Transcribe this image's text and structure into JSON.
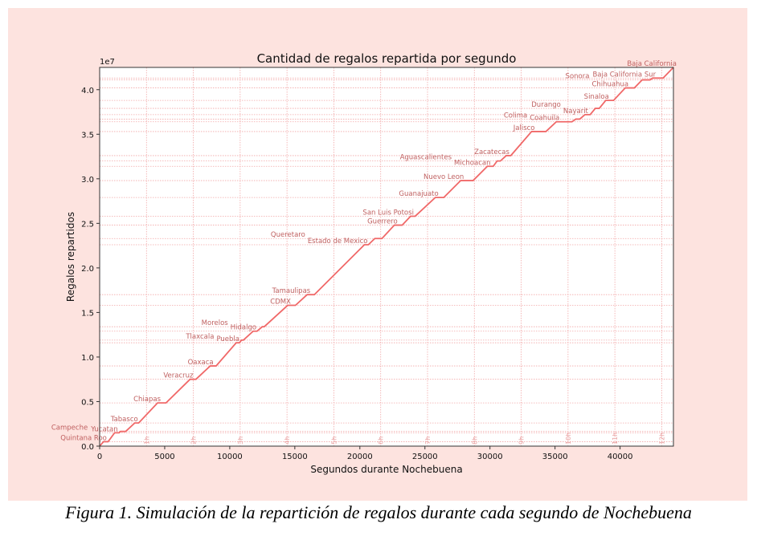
{
  "caption": "Figura 1. Simulación de la repartición de regalos durante cada segundo de Nochebuena",
  "chart_data": {
    "type": "line",
    "title": "Cantidad de regalos repartida por segundo",
    "xlabel": "Segundos durante Nochebuena",
    "ylabel": "Regalos repartidos",
    "y_offset_label": "1e7",
    "xlim": [
      0,
      44100
    ],
    "ylim": [
      0,
      42500000
    ],
    "x_ticks": [
      0,
      5000,
      10000,
      15000,
      20000,
      25000,
      30000,
      35000,
      40000
    ],
    "y_ticks": [
      0,
      5000000,
      10000000,
      15000000,
      20000000,
      25000000,
      30000000,
      35000000,
      40000000
    ],
    "y_tick_labels": [
      "0.0",
      "0.5",
      "1.0",
      "1.5",
      "2.0",
      "2.5",
      "3.0",
      "3.5",
      "4.0"
    ],
    "hour_markers": [
      {
        "label": "1h",
        "x": 3600
      },
      {
        "label": "2h",
        "x": 7200
      },
      {
        "label": "3h",
        "x": 10800
      },
      {
        "label": "4h",
        "x": 14400
      },
      {
        "label": "5h",
        "x": 18000
      },
      {
        "label": "6h",
        "x": 21600
      },
      {
        "label": "7h",
        "x": 25200
      },
      {
        "label": "8h",
        "x": 28800
      },
      {
        "label": "9h",
        "x": 32400
      },
      {
        "label": "10h",
        "x": 36000
      },
      {
        "label": "11h",
        "x": 39600
      },
      {
        "label": "12h",
        "x": 43200
      }
    ],
    "line_color": "#f06868",
    "label_color": "#c06060",
    "grid_color": "#f2a8a8",
    "states": [
      {
        "name": "Quintana Roo",
        "y": 500000,
        "x_start": 300,
        "x_end": 650
      },
      {
        "name": "Yucatan",
        "y": 1500000,
        "x_start": 1150,
        "x_end": 1500
      },
      {
        "name": "Campeche",
        "y": 1650000,
        "x_start": 1600,
        "x_end": 2000
      },
      {
        "name": "Tabasco",
        "y": 2600000,
        "x_start": 2700,
        "x_end": 3000
      },
      {
        "name": "Chiapas",
        "y": 4850000,
        "x_start": 4450,
        "x_end": 5100
      },
      {
        "name": "Veracruz",
        "y": 7500000,
        "x_start": 6950,
        "x_end": 7400
      },
      {
        "name": "Oaxaca",
        "y": 9000000,
        "x_start": 8500,
        "x_end": 8950
      },
      {
        "name": "Puebla",
        "y": 11600000,
        "x_start": 10500,
        "x_end": 10750
      },
      {
        "name": "Tlaxcala",
        "y": 11900000,
        "x_start": 10900,
        "x_end": 11050
      },
      {
        "name": "Hidalgo",
        "y": 12900000,
        "x_start": 11800,
        "x_end": 12100
      },
      {
        "name": "Morelos",
        "y": 13400000,
        "x_start": 12500,
        "x_end": 12650
      },
      {
        "name": "CDMX",
        "y": 15800000,
        "x_start": 14450,
        "x_end": 15050
      },
      {
        "name": "Tamaulipas",
        "y": 17000000,
        "x_start": 15950,
        "x_end": 16500
      },
      {
        "name": "Estado de Mexico",
        "y": 22600000,
        "x_start": 20350,
        "x_end": 20650
      },
      {
        "name": "Queretaro",
        "y": 23300000,
        "x_start": 21150,
        "x_end": 21700
      },
      {
        "name": "Guerrero",
        "y": 24800000,
        "x_start": 22650,
        "x_end": 23250
      },
      {
        "name": "San Luis Potosi",
        "y": 25800000,
        "x_start": 23900,
        "x_end": 24250
      },
      {
        "name": "Guanajuato",
        "y": 27900000,
        "x_start": 25800,
        "x_end": 26450
      },
      {
        "name": "Nuevo Leon",
        "y": 29800000,
        "x_start": 27750,
        "x_end": 28700
      },
      {
        "name": "Michoacan",
        "y": 31400000,
        "x_start": 29800,
        "x_end": 30250
      },
      {
        "name": "Aguascalientes",
        "y": 32000000,
        "x_start": 30550,
        "x_end": 30800
      },
      {
        "name": "Zacatecas",
        "y": 32600000,
        "x_start": 31250,
        "x_end": 31600
      },
      {
        "name": "Jalisco",
        "y": 35300000,
        "x_start": 33200,
        "x_end": 34300
      },
      {
        "name": "Coahuila",
        "y": 36400000,
        "x_start": 35100,
        "x_end": 36300
      },
      {
        "name": "Colima",
        "y": 36700000,
        "x_start": 36600,
        "x_end": 36900
      },
      {
        "name": "Nayarit",
        "y": 37200000,
        "x_start": 37300,
        "x_end": 37700
      },
      {
        "name": "Durango",
        "y": 37900000,
        "x_start": 38100,
        "x_end": 38400
      },
      {
        "name": "Sinaloa",
        "y": 38800000,
        "x_start": 38900,
        "x_end": 39500
      },
      {
        "name": "Chihuahua",
        "y": 40200000,
        "x_start": 40400,
        "x_end": 41100
      },
      {
        "name": "Sonora",
        "y": 41100000,
        "x_start": 41700,
        "x_end": 42300
      },
      {
        "name": "Baja California Sur",
        "y": 41300000,
        "x_start": 42500,
        "x_end": 43300
      },
      {
        "name": "Baja California",
        "y": 42500000,
        "x_start": 44100,
        "x_end": 44100
      }
    ]
  }
}
